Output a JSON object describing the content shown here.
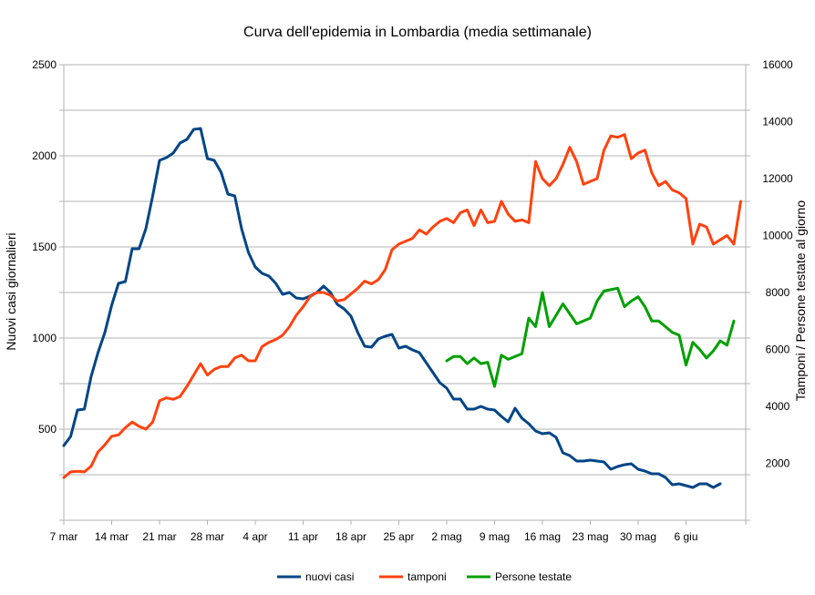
{
  "chart_data": {
    "type": "line",
    "title": "Curva dell'epidemia in Lombardia (media settimanale)",
    "ylabel": "Nuovi casi giornalieri",
    "ylabel_right": "Tamponi / Persone testate al giorno",
    "ylim": [
      0,
      2500
    ],
    "ylim_right": [
      0,
      16000
    ],
    "yticks": [
      "500",
      "1000",
      "1500",
      "2000",
      "2500"
    ],
    "yticks_right": [
      "2000",
      "4000",
      "6000",
      "8000",
      "10000",
      "12000",
      "14000",
      "16000"
    ],
    "xtick_labels": [
      "7 mar",
      "14 mar",
      "21 mar",
      "28 mar",
      "4 apr",
      "11 apr",
      "18 apr",
      "25 apr",
      "2 mag",
      "9 mag",
      "16 mag",
      "23 mag",
      "30 mag",
      "6 giu"
    ],
    "x_start": "7 mar",
    "x_end": "12 giu",
    "grid": true,
    "legend_position": "bottom",
    "series": [
      {
        "name": "nuovi casi",
        "axis": "left",
        "color": "#004586",
        "values": [
          410,
          460,
          605,
          610,
          790,
          920,
          1030,
          1180,
          1300,
          1310,
          1490,
          1490,
          1600,
          1780,
          1975,
          1990,
          2015,
          2070,
          2090,
          2145,
          2150,
          1985,
          1975,
          1910,
          1790,
          1780,
          1600,
          1470,
          1390,
          1355,
          1340,
          1300,
          1240,
          1250,
          1220,
          1215,
          1230,
          1250,
          1285,
          1250,
          1185,
          1160,
          1120,
          1030,
          955,
          950,
          995,
          1010,
          1020,
          945,
          955,
          935,
          920,
          865,
          810,
          755,
          725,
          665,
          665,
          610,
          610,
          625,
          610,
          605,
          570,
          540,
          615,
          560,
          530,
          490,
          475,
          480,
          455,
          370,
          355,
          325,
          325,
          330,
          325,
          320,
          280,
          295,
          305,
          310,
          280,
          270,
          255,
          255,
          235,
          195,
          200,
          190,
          180,
          200,
          200,
          180,
          200
        ]
      },
      {
        "name": "tamponi",
        "axis": "right",
        "color": "#ff420e",
        "values": [
          1500,
          1700,
          1720,
          1700,
          1900,
          2400,
          2650,
          2950,
          3000,
          3250,
          3450,
          3300,
          3200,
          3450,
          4200,
          4300,
          4250,
          4350,
          4700,
          5100,
          5500,
          5100,
          5300,
          5400,
          5400,
          5700,
          5800,
          5600,
          5600,
          6100,
          6250,
          6350,
          6500,
          6800,
          7200,
          7500,
          7850,
          8000,
          8000,
          7900,
          7700,
          7750,
          7950,
          8150,
          8400,
          8300,
          8450,
          8800,
          9500,
          9700,
          9800,
          9900,
          10200,
          10050,
          10300,
          10500,
          10600,
          10450,
          10800,
          10900,
          10350,
          10900,
          10450,
          10500,
          11200,
          10750,
          10500,
          10550,
          10450,
          12600,
          12000,
          11750,
          12000,
          12500,
          13100,
          12600,
          11800,
          11900,
          12000,
          13000,
          13500,
          13450,
          13550,
          12700,
          12900,
          13000,
          12200,
          11750,
          11900,
          11600,
          11500,
          11300,
          9700,
          10400,
          10300,
          9700,
          9850,
          10000,
          9700,
          11200
        ]
      },
      {
        "name": "Persone testate",
        "axis": "right",
        "color": "#00a000",
        "start_index": 56,
        "values": [
          5600,
          5750,
          5750,
          5500,
          5700,
          5500,
          5550,
          4700,
          5800,
          5650,
          5750,
          5850,
          7100,
          6800,
          8000,
          6800,
          7200,
          7600,
          7250,
          6900,
          7000,
          7100,
          7700,
          8050,
          8100,
          8150,
          7500,
          7700,
          7850,
          7500,
          7000,
          7000,
          6800,
          6600,
          6500,
          5450,
          6250,
          6000,
          5700,
          5950,
          6300,
          6150,
          7000
        ]
      }
    ]
  }
}
